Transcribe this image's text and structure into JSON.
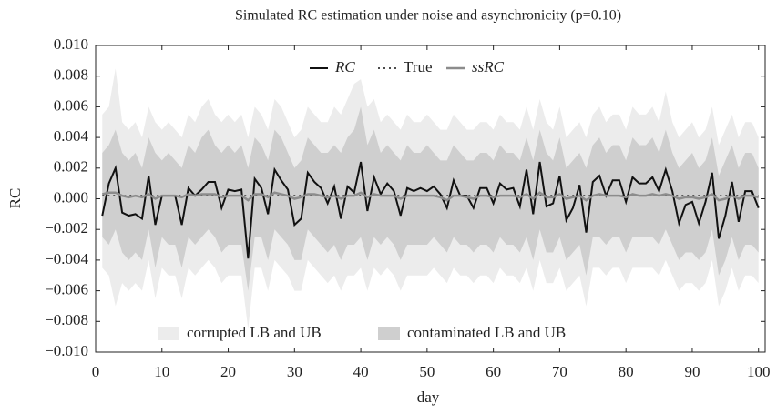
{
  "chart_data": {
    "type": "line",
    "title": "Simulated RC estimation under noise and asynchronicity (p=0.10)",
    "x_label": "day",
    "y_label": "RC",
    "xlim": [
      0,
      101
    ],
    "ylim": [
      -0.01,
      0.01
    ],
    "xticks": [
      0,
      10,
      20,
      30,
      40,
      50,
      60,
      70,
      80,
      90,
      100
    ],
    "yticks": [
      {
        "value": -0.01,
        "label": "−0.010"
      },
      {
        "value": -0.008,
        "label": "−0.008"
      },
      {
        "value": -0.006,
        "label": "−0.006"
      },
      {
        "value": -0.004,
        "label": "−0.004"
      },
      {
        "value": -0.002,
        "label": "−0.002"
      },
      {
        "value": 0,
        "label": "0.000"
      },
      {
        "value": 0.002,
        "label": "0.002"
      },
      {
        "value": 0.004,
        "label": "0.004"
      },
      {
        "value": 0.006,
        "label": "0.006"
      },
      {
        "value": 0.008,
        "label": "0.008"
      },
      {
        "value": 0.01,
        "label": "0.010"
      }
    ],
    "x": [
      1,
      2,
      3,
      4,
      5,
      6,
      7,
      8,
      9,
      10,
      11,
      12,
      13,
      14,
      15,
      16,
      17,
      18,
      19,
      20,
      21,
      22,
      23,
      24,
      25,
      26,
      27,
      28,
      29,
      30,
      31,
      32,
      33,
      34,
      35,
      36,
      37,
      38,
      39,
      40,
      41,
      42,
      43,
      44,
      45,
      46,
      47,
      48,
      49,
      50,
      51,
      52,
      53,
      54,
      55,
      56,
      57,
      58,
      59,
      60,
      61,
      62,
      63,
      64,
      65,
      66,
      67,
      68,
      69,
      70,
      71,
      72,
      73,
      74,
      75,
      76,
      77,
      78,
      79,
      80,
      81,
      82,
      83,
      84,
      85,
      86,
      87,
      88,
      89,
      90,
      91,
      92,
      93,
      94,
      95,
      96,
      97,
      98,
      99,
      100
    ],
    "bands": [
      {
        "name": "corrupted LB and UB",
        "color": "#ececec",
        "upper": [
          0.0055,
          0.006,
          0.0085,
          0.005,
          0.0045,
          0.005,
          0.004,
          0.006,
          0.005,
          0.0045,
          0.005,
          0.0045,
          0.004,
          0.0055,
          0.005,
          0.006,
          0.0065,
          0.0055,
          0.005,
          0.0055,
          0.005,
          0.0055,
          0.004,
          0.006,
          0.0055,
          0.0045,
          0.0065,
          0.006,
          0.005,
          0.004,
          0.0045,
          0.006,
          0.0055,
          0.005,
          0.005,
          0.006,
          0.0055,
          0.0065,
          0.0075,
          0.0078,
          0.006,
          0.0065,
          0.005,
          0.0055,
          0.005,
          0.0045,
          0.0055,
          0.005,
          0.005,
          0.0055,
          0.005,
          0.0045,
          0.0045,
          0.0055,
          0.005,
          0.0045,
          0.0045,
          0.005,
          0.005,
          0.0045,
          0.0055,
          0.005,
          0.005,
          0.0045,
          0.006,
          0.0045,
          0.0065,
          0.005,
          0.0045,
          0.006,
          0.004,
          0.0045,
          0.005,
          0.004,
          0.0055,
          0.006,
          0.005,
          0.0055,
          0.0055,
          0.0045,
          0.006,
          0.0055,
          0.0055,
          0.006,
          0.005,
          0.007,
          0.005,
          0.004,
          0.0045,
          0.005,
          0.004,
          0.0045,
          0.006,
          0.0035,
          0.0045,
          0.0055,
          0.004,
          0.005,
          0.005,
          0.004
        ],
        "lower": [
          -0.0045,
          -0.005,
          -0.007,
          -0.0055,
          -0.006,
          -0.0055,
          -0.006,
          -0.004,
          -0.0065,
          -0.0045,
          -0.005,
          -0.005,
          -0.0065,
          -0.0045,
          -0.005,
          -0.0045,
          -0.004,
          -0.0045,
          -0.0055,
          -0.005,
          -0.005,
          -0.005,
          -0.0085,
          -0.0045,
          -0.0045,
          -0.006,
          -0.004,
          -0.0045,
          -0.005,
          -0.006,
          -0.006,
          -0.004,
          -0.0045,
          -0.005,
          -0.0055,
          -0.005,
          -0.006,
          -0.005,
          -0.005,
          -0.0045,
          -0.006,
          -0.0045,
          -0.005,
          -0.0045,
          -0.005,
          -0.006,
          -0.005,
          -0.005,
          -0.005,
          -0.005,
          -0.0045,
          -0.005,
          -0.0055,
          -0.0045,
          -0.005,
          -0.005,
          -0.0055,
          -0.005,
          -0.005,
          -0.0055,
          -0.0045,
          -0.005,
          -0.005,
          -0.0055,
          -0.0045,
          -0.006,
          -0.004,
          -0.0055,
          -0.0055,
          -0.0045,
          -0.006,
          -0.0055,
          -0.005,
          -0.007,
          -0.0045,
          -0.0045,
          -0.005,
          -0.0045,
          -0.0045,
          -0.0055,
          -0.0045,
          -0.0045,
          -0.0045,
          -0.0045,
          -0.005,
          -0.004,
          -0.005,
          -0.006,
          -0.0055,
          -0.0055,
          -0.006,
          -0.0055,
          -0.004,
          -0.007,
          -0.006,
          -0.0045,
          -0.006,
          -0.005,
          -0.005,
          -0.0055
        ]
      },
      {
        "name": "contaminated LB and UB",
        "color": "#cfcfcf",
        "upper": [
          0.003,
          0.0035,
          0.0045,
          0.003,
          0.0025,
          0.003,
          0.002,
          0.004,
          0.003,
          0.0025,
          0.003,
          0.0025,
          0.002,
          0.0035,
          0.003,
          0.004,
          0.0045,
          0.0035,
          0.003,
          0.0035,
          0.003,
          0.0035,
          0.002,
          0.004,
          0.0035,
          0.0025,
          0.0045,
          0.004,
          0.003,
          0.002,
          0.0025,
          0.004,
          0.0035,
          0.003,
          0.003,
          0.0035,
          0.003,
          0.004,
          0.0045,
          0.006,
          0.0035,
          0.0045,
          0.003,
          0.0035,
          0.003,
          0.0025,
          0.0035,
          0.003,
          0.003,
          0.0035,
          0.003,
          0.0025,
          0.0025,
          0.0035,
          0.003,
          0.0025,
          0.0025,
          0.003,
          0.003,
          0.0025,
          0.0035,
          0.003,
          0.003,
          0.0025,
          0.004,
          0.0025,
          0.0045,
          0.003,
          0.0025,
          0.004,
          0.002,
          0.0025,
          0.003,
          0.002,
          0.0035,
          0.004,
          0.003,
          0.0035,
          0.0035,
          0.0025,
          0.004,
          0.0035,
          0.0035,
          0.004,
          0.003,
          0.0045,
          0.003,
          0.002,
          0.0025,
          0.003,
          0.002,
          0.0025,
          0.004,
          0.0015,
          0.0025,
          0.0035,
          0.002,
          0.003,
          0.003,
          0.002
        ],
        "lower": [
          -0.0025,
          -0.003,
          -0.002,
          -0.0035,
          -0.004,
          -0.0035,
          -0.004,
          -0.002,
          -0.0045,
          -0.0025,
          -0.003,
          -0.003,
          -0.0045,
          -0.0025,
          -0.003,
          -0.0025,
          -0.002,
          -0.0025,
          -0.0035,
          -0.003,
          -0.003,
          -0.003,
          -0.006,
          -0.0025,
          -0.0025,
          -0.004,
          -0.002,
          -0.0025,
          -0.003,
          -0.004,
          -0.004,
          -0.002,
          -0.0025,
          -0.003,
          -0.0035,
          -0.003,
          -0.004,
          -0.003,
          -0.003,
          -0.0025,
          -0.004,
          -0.0025,
          -0.003,
          -0.0025,
          -0.003,
          -0.004,
          -0.003,
          -0.003,
          -0.003,
          -0.003,
          -0.0025,
          -0.003,
          -0.0035,
          -0.0025,
          -0.003,
          -0.003,
          -0.0035,
          -0.003,
          -0.003,
          -0.0035,
          -0.0025,
          -0.003,
          -0.003,
          -0.0035,
          -0.0025,
          -0.004,
          -0.002,
          -0.0035,
          -0.0035,
          -0.0025,
          -0.004,
          -0.0035,
          -0.003,
          -0.005,
          -0.0025,
          -0.0025,
          -0.003,
          -0.0025,
          -0.0025,
          -0.0035,
          -0.0025,
          -0.0025,
          -0.0025,
          -0.0025,
          -0.003,
          -0.002,
          -0.003,
          -0.004,
          -0.0035,
          -0.0035,
          -0.004,
          -0.0035,
          -0.002,
          -0.005,
          -0.004,
          -0.0025,
          -0.004,
          -0.003,
          -0.003,
          -0.0035
        ]
      }
    ],
    "series": [
      {
        "name": "RC",
        "color": "#111111",
        "dash": "none",
        "width": 2,
        "values": [
          -0.0011,
          0.001,
          0.002,
          -0.0009,
          -0.0011,
          -0.001,
          -0.0013,
          0.0015,
          -0.0017,
          0.0002,
          0.0002,
          0.0002,
          -0.0017,
          0.0007,
          0.0002,
          0.0006,
          0.0011,
          0.0011,
          -0.0006,
          0.0006,
          0.0005,
          0.0006,
          -0.0039,
          0.0013,
          0.0007,
          -0.001,
          0.0019,
          0.0012,
          0.0006,
          -0.0017,
          -0.0013,
          0.0017,
          0.0011,
          0.0007,
          -0.0003,
          0.0008,
          -0.0013,
          0.0008,
          0.0004,
          0.0024,
          -0.0008,
          0.0014,
          0.0003,
          0.001,
          0.0005,
          -0.0011,
          0.0007,
          0.0005,
          0.0007,
          0.0005,
          0.0008,
          0.0003,
          -0.0006,
          0.0012,
          0.0002,
          0.0002,
          -0.0006,
          0.0007,
          0.0007,
          -0.0003,
          0.001,
          0.0006,
          0.0007,
          -0.0005,
          0.0019,
          -0.001,
          0.0024,
          -0.0005,
          -0.0003,
          0.0015,
          -0.0014,
          -0.0006,
          0.0009,
          -0.0022,
          0.0011,
          0.0015,
          0.0002,
          0.0012,
          0.0012,
          -0.0002,
          0.0014,
          0.001,
          0.001,
          0.0014,
          0.0005,
          0.0019,
          0.0005,
          -0.0016,
          -0.0004,
          -0.0002,
          -0.0016,
          -0.0002,
          0.0017,
          -0.0026,
          -0.0011,
          0.0011,
          -0.0015,
          0.0005,
          0.0005,
          -0.0006
        ]
      },
      {
        "name": "True",
        "color": "#111111",
        "dash": "2 4",
        "width": 1.5,
        "values": [
          0.0002,
          0.0002,
          0.0002,
          0.0002,
          0.0002,
          0.0002,
          0.0002,
          0.0002,
          0.0002,
          0.0002,
          0.0002,
          0.0002,
          0.0002,
          0.0002,
          0.0002,
          0.0002,
          0.0002,
          0.0002,
          0.0002,
          0.0002,
          0.0002,
          0.0002,
          0.0002,
          0.0002,
          0.0002,
          0.0002,
          0.0002,
          0.0002,
          0.0002,
          0.0002,
          0.0002,
          0.0002,
          0.0002,
          0.0002,
          0.0002,
          0.0002,
          0.0002,
          0.0002,
          0.0002,
          0.0002,
          0.0002,
          0.0002,
          0.0002,
          0.0002,
          0.0002,
          0.0002,
          0.0002,
          0.0002,
          0.0002,
          0.0002,
          0.0002,
          0.0002,
          0.0002,
          0.0002,
          0.0002,
          0.0002,
          0.0002,
          0.0002,
          0.0002,
          0.0002,
          0.0002,
          0.0002,
          0.0002,
          0.0002,
          0.0002,
          0.0002,
          0.0002,
          0.0002,
          0.0002,
          0.0002,
          0.0002,
          0.0002,
          0.0002,
          0.0002,
          0.0002,
          0.0002,
          0.0002,
          0.0002,
          0.0002,
          0.0002,
          0.0002,
          0.0002,
          0.0002,
          0.0002,
          0.0002,
          0.0002,
          0.0002,
          0.0002,
          0.0002,
          0.0002,
          0.0002,
          0.0002,
          0.0002,
          0.0002,
          0.0002,
          0.0002,
          0.0002,
          0.0002,
          0.0002,
          0.0002
        ]
      },
      {
        "name": "ssRC",
        "color": "#8c8c8c",
        "dash": "none",
        "width": 2.5,
        "values": [
          0.0003,
          0.0004,
          0.0004,
          0.0002,
          0.0001,
          0.0002,
          0.0001,
          0.0003,
          0,
          0.0002,
          0.0002,
          0.0002,
          0.0001,
          0.0003,
          0.0002,
          0.0003,
          0.0003,
          0.0003,
          0.0001,
          0.0002,
          0.0002,
          0.0002,
          -0.0001,
          0.0003,
          0.0003,
          0.0001,
          0.0004,
          0.0003,
          0.0002,
          0,
          0.0001,
          0.0003,
          0.0003,
          0.0002,
          0.0001,
          0.0002,
          0,
          0.0002,
          0.0002,
          0.0004,
          0.0001,
          0.0003,
          0.0002,
          0.0002,
          0.0002,
          0,
          0.0002,
          0.0002,
          0.0002,
          0.0002,
          0.0002,
          0.0001,
          -0.0001,
          0.0002,
          0.0002,
          0.0001,
          0,
          0.0002,
          0.0002,
          0.0001,
          0.0002,
          0.0002,
          0.0002,
          0.0001,
          0.0003,
          0,
          0.0004,
          0.0001,
          0.0001,
          0.0003,
          0,
          0.0001,
          0.0002,
          -0.0001,
          0.0002,
          0.0003,
          0.0002,
          0.0002,
          0.0002,
          0.0001,
          0.0003,
          0.0002,
          0.0002,
          0.0003,
          0.0002,
          0.0003,
          0.0002,
          0,
          0.0001,
          0.0001,
          0,
          0.0001,
          0.0003,
          -0.0001,
          0,
          0.0002,
          0,
          0.0002,
          0.0002,
          0.0001
        ]
      }
    ]
  }
}
